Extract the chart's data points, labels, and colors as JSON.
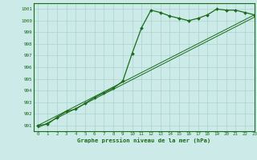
{
  "background_color": "#cceae7",
  "grid_color": "#aad4d0",
  "line_color": "#1a6b1a",
  "title": "Graphe pression niveau de la mer (hPa)",
  "xlim": [
    -0.5,
    23
  ],
  "ylim": [
    990.5,
    1001.5
  ],
  "yticks": [
    991,
    992,
    993,
    994,
    995,
    996,
    997,
    998,
    999,
    1000,
    1001
  ],
  "xticks": [
    0,
    1,
    2,
    3,
    4,
    5,
    6,
    7,
    8,
    9,
    10,
    11,
    12,
    13,
    14,
    15,
    16,
    17,
    18,
    19,
    20,
    21,
    22,
    23
  ],
  "line1_x": [
    0,
    1,
    2,
    3,
    4,
    5,
    6,
    7,
    8,
    9,
    10,
    11,
    12,
    13,
    14,
    15,
    16,
    17,
    18,
    19,
    20,
    21,
    22,
    23
  ],
  "line1_y": [
    991.0,
    991.1,
    991.7,
    992.2,
    992.4,
    992.9,
    993.4,
    993.8,
    994.2,
    994.8,
    997.2,
    999.4,
    1000.9,
    1000.7,
    1000.4,
    1000.2,
    1000.0,
    1000.2,
    1000.5,
    1001.0,
    1000.9,
    1000.9,
    1000.7,
    1000.5
  ],
  "line2_x": [
    0,
    23
  ],
  "line2_y": [
    991.0,
    1000.5
  ],
  "line3_x": [
    0,
    23
  ],
  "line3_y": [
    990.8,
    1000.3
  ],
  "line4_x": [
    0,
    23
  ],
  "line4_y": [
    990.9,
    1000.4
  ]
}
